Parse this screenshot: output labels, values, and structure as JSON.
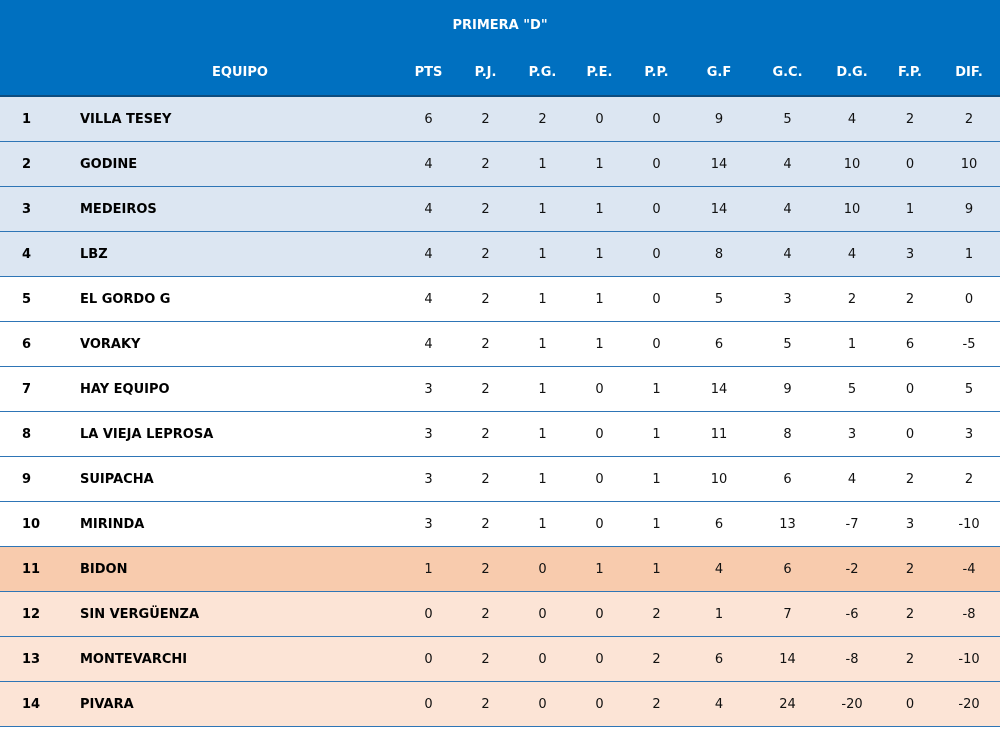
{
  "table": {
    "title": "PRIMERA \"D\"",
    "headers": {
      "equipo": "EQUIPO",
      "pts": "PTS",
      "pj": "P.J.",
      "pg": "P.G.",
      "pe": "P.E.",
      "pp": "P.P.",
      "gf": "G.F",
      "gc": "G.C.",
      "dg": "D.G.",
      "fp": "F.P.",
      "dif": "DIF."
    },
    "rows": [
      {
        "pos": "1",
        "team": "VILLA TESEY",
        "pts": "6",
        "pj": "2",
        "pg": "2",
        "pe": "0",
        "pp": "0",
        "gf": "9",
        "gc": "5",
        "dg": "4",
        "fp": "2",
        "dif": "2"
      },
      {
        "pos": "2",
        "team": "GODINE",
        "pts": "4",
        "pj": "2",
        "pg": "1",
        "pe": "1",
        "pp": "0",
        "gf": "14",
        "gc": "4",
        "dg": "10",
        "fp": "0",
        "dif": "10"
      },
      {
        "pos": "3",
        "team": "MEDEIROS",
        "pts": "4",
        "pj": "2",
        "pg": "1",
        "pe": "1",
        "pp": "0",
        "gf": "14",
        "gc": "4",
        "dg": "10",
        "fp": "1",
        "dif": "9"
      },
      {
        "pos": "4",
        "team": "LBZ",
        "pts": "4",
        "pj": "2",
        "pg": "1",
        "pe": "1",
        "pp": "0",
        "gf": "8",
        "gc": "4",
        "dg": "4",
        "fp": "3",
        "dif": "1"
      },
      {
        "pos": "5",
        "team": "EL GORDO G",
        "pts": "4",
        "pj": "2",
        "pg": "1",
        "pe": "1",
        "pp": "0",
        "gf": "5",
        "gc": "3",
        "dg": "2",
        "fp": "2",
        "dif": "0"
      },
      {
        "pos": "6",
        "team": "VORAKY",
        "pts": "4",
        "pj": "2",
        "pg": "1",
        "pe": "1",
        "pp": "0",
        "gf": "6",
        "gc": "5",
        "dg": "1",
        "fp": "6",
        "dif": "-5"
      },
      {
        "pos": "7",
        "team": "HAY EQUIPO",
        "pts": "3",
        "pj": "2",
        "pg": "1",
        "pe": "0",
        "pp": "1",
        "gf": "14",
        "gc": "9",
        "dg": "5",
        "fp": "0",
        "dif": "5"
      },
      {
        "pos": "8",
        "team": "LA VIEJA LEPROSA",
        "pts": "3",
        "pj": "2",
        "pg": "1",
        "pe": "0",
        "pp": "1",
        "gf": "11",
        "gc": "8",
        "dg": "3",
        "fp": "0",
        "dif": "3"
      },
      {
        "pos": "9",
        "team": "SUIPACHA",
        "pts": "3",
        "pj": "2",
        "pg": "1",
        "pe": "0",
        "pp": "1",
        "gf": "10",
        "gc": "6",
        "dg": "4",
        "fp": "2",
        "dif": "2"
      },
      {
        "pos": "10",
        "team": "MIRINDA",
        "pts": "3",
        "pj": "2",
        "pg": "1",
        "pe": "0",
        "pp": "1",
        "gf": "6",
        "gc": "13",
        "dg": "-7",
        "fp": "3",
        "dif": "-10"
      },
      {
        "pos": "11",
        "team": "BIDON",
        "pts": "1",
        "pj": "2",
        "pg": "0",
        "pe": "1",
        "pp": "1",
        "gf": "4",
        "gc": "6",
        "dg": "-2",
        "fp": "2",
        "dif": "-4"
      },
      {
        "pos": "12",
        "team": "SIN VERGÜENZA",
        "pts": "0",
        "pj": "2",
        "pg": "0",
        "pe": "0",
        "pp": "2",
        "gf": "1",
        "gc": "7",
        "dg": "-6",
        "fp": "2",
        "dif": "-8"
      },
      {
        "pos": "13",
        "team": "MONTEVARCHI",
        "pts": "0",
        "pj": "2",
        "pg": "0",
        "pe": "0",
        "pp": "2",
        "gf": "6",
        "gc": "14",
        "dg": "-8",
        "fp": "2",
        "dif": "-10"
      },
      {
        "pos": "14",
        "team": "PIVARA",
        "pts": "0",
        "pj": "2",
        "pg": "0",
        "pe": "0",
        "pp": "2",
        "gf": "4",
        "gc": "24",
        "dg": "-20",
        "fp": "0",
        "dif": "-20"
      }
    ]
  },
  "colors": {
    "header_blue": "#0070c0",
    "top_zone": "#dce6f2",
    "mid_zone": "#ffffff",
    "playoff_zone": "#f8cbad",
    "relegation_zone": "#fce4d6",
    "row_line": "#2e75b6"
  }
}
